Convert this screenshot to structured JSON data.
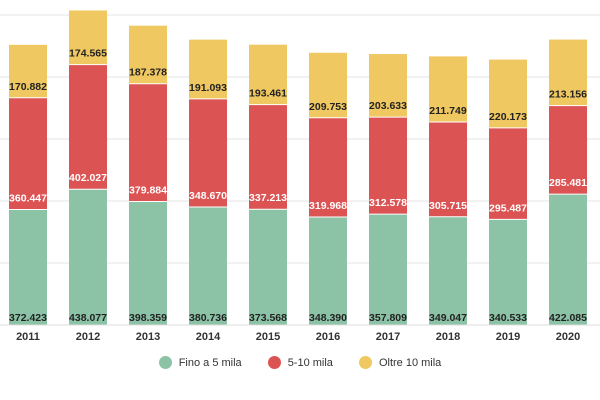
{
  "chart_data": {
    "type": "bar",
    "stacked": true,
    "categories": [
      "2011",
      "2012",
      "2013",
      "2014",
      "2015",
      "2016",
      "2017",
      "2018",
      "2019",
      "2020"
    ],
    "series": [
      {
        "name": "Fino a 5 mila",
        "color": "#8cc3a6",
        "values": [
          372423,
          438077,
          398359,
          380736,
          373568,
          348390,
          357809,
          349047,
          340533,
          422085
        ],
        "labels": [
          "372.423",
          "438.077",
          "398.359",
          "380.736",
          "373.568",
          "348.390",
          "357.809",
          "349.047",
          "340.533",
          "422.085"
        ],
        "label_color": "#222222"
      },
      {
        "name": "5-10 mila",
        "color": "#dc5354",
        "values": [
          360447,
          402027,
          379884,
          348670,
          337213,
          319968,
          312578,
          305715,
          295487,
          285481
        ],
        "labels": [
          "360.447",
          "402.027",
          "379.884",
          "348.670",
          "337.213",
          "319.968",
          "312.578",
          "305.715",
          "295.487",
          "285.481"
        ],
        "label_color": "#ffffff"
      },
      {
        "name": "Oltre 10 mila",
        "color": "#f0c862",
        "values": [
          170882,
          174565,
          187378,
          191093,
          193461,
          209753,
          203633,
          211749,
          220173,
          213156
        ],
        "labels": [
          "170.882",
          "174.565",
          "187.378",
          "191.093",
          "193.461",
          "209.753",
          "203.633",
          "211.749",
          "220.173",
          "213.156"
        ],
        "label_color": "#222222"
      }
    ],
    "ylim": [
      0,
      1000000
    ],
    "grid": true,
    "legend": "bottom-center"
  }
}
